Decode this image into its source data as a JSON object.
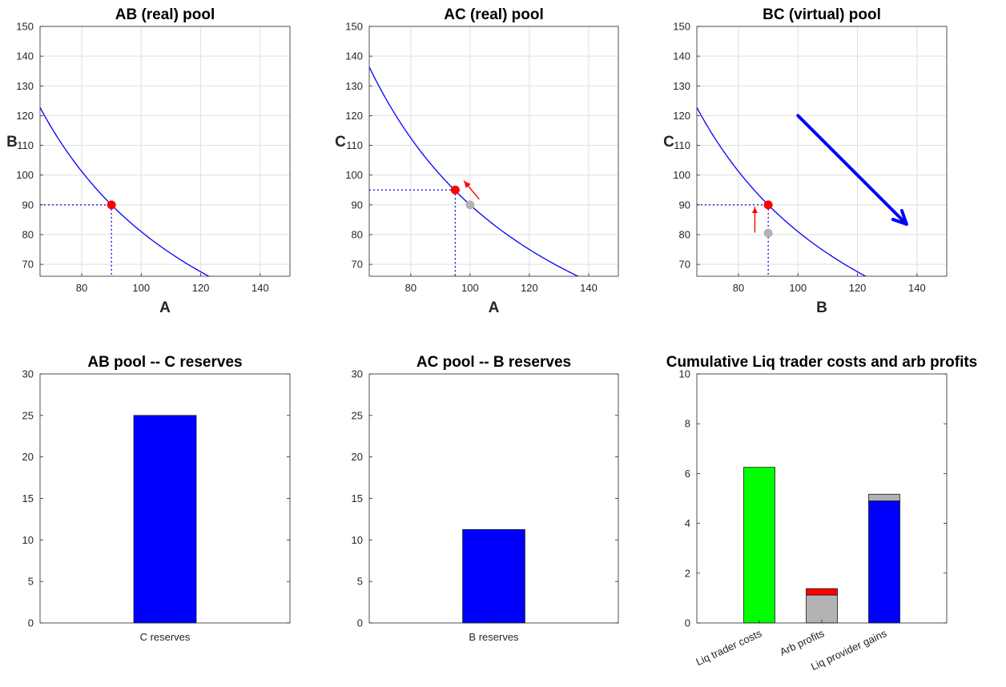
{
  "charts": [
    {
      "type": "line",
      "title": "AB (real) pool",
      "xlabel": "A",
      "ylabel": "B",
      "xlim": [
        66,
        150
      ],
      "ylim": [
        66,
        150
      ],
      "xticks": [
        80,
        100,
        120,
        140
      ],
      "yticks": [
        70,
        80,
        90,
        100,
        110,
        120,
        130,
        140,
        150
      ],
      "grid": true,
      "curve_k": 8100,
      "point": {
        "x": 90,
        "y": 90,
        "color": "#ff0000"
      },
      "ghost_point": null,
      "drop_lines": true,
      "arrows": []
    },
    {
      "type": "line",
      "title": "AC (real) pool",
      "xlabel": "A",
      "ylabel": "C",
      "xlim": [
        66,
        150
      ],
      "ylim": [
        66,
        150
      ],
      "xticks": [
        80,
        100,
        120,
        140
      ],
      "yticks": [
        70,
        80,
        90,
        100,
        110,
        120,
        130,
        140,
        150
      ],
      "grid": true,
      "curve_k": 9000,
      "point": {
        "x": 95,
        "y": 95,
        "color": "#ff0000"
      },
      "ghost_point": {
        "x": 100,
        "y": 90,
        "color": "#b3b3b3"
      },
      "drop_lines": true,
      "arrows": [
        {
          "x1": 103,
          "y1": 92,
          "x2": 98,
          "y2": 98,
          "color": "#ff0000",
          "width": 1.4,
          "head": 9
        }
      ]
    },
    {
      "type": "line",
      "title": "BC (virtual) pool",
      "xlabel": "B",
      "ylabel": "C",
      "xlim": [
        66,
        150
      ],
      "ylim": [
        66,
        150
      ],
      "xticks": [
        80,
        100,
        120,
        140
      ],
      "yticks": [
        70,
        80,
        90,
        100,
        110,
        120,
        130,
        140,
        150
      ],
      "grid": true,
      "curve_k": 8100,
      "point": {
        "x": 90,
        "y": 90,
        "color": "#ff0000"
      },
      "ghost_point": {
        "x": 90,
        "y": 80.5,
        "color": "#b3b3b3"
      },
      "drop_lines": true,
      "arrows": [
        {
          "x1": 85.5,
          "y1": 80.8,
          "x2": 85.5,
          "y2": 89.2,
          "color": "#ff0000",
          "width": 1.4,
          "head": 8
        },
        {
          "x1": 100,
          "y1": 120,
          "x2": 136.5,
          "y2": 83.5,
          "color": "#0000ff",
          "width": 4,
          "head": 18
        }
      ]
    }
  ],
  "chart_data": [
    {
      "type": "bar",
      "title": "AB pool -- C reserves",
      "categories": [
        "C reserves"
      ],
      "values": [
        25
      ],
      "colors": [
        "#0000ff"
      ],
      "ylim": [
        0,
        30
      ],
      "yticks": [
        0,
        5,
        10,
        15,
        20,
        25,
        30
      ],
      "grid": false,
      "xlabel": "",
      "ylabel": ""
    },
    {
      "type": "bar",
      "title": "AC pool -- B reserves",
      "categories": [
        "B reserves"
      ],
      "values": [
        11.25
      ],
      "colors": [
        "#0000ff"
      ],
      "ylim": [
        0,
        30
      ],
      "yticks": [
        0,
        5,
        10,
        15,
        20,
        25,
        30
      ],
      "grid": false,
      "xlabel": "",
      "ylabel": ""
    },
    {
      "type": "bar",
      "stacked": true,
      "title": "Cumulative Liq trader costs and arb profits",
      "categories": [
        "Liq trader costs",
        "Arb profits",
        "Liq provider gains"
      ],
      "series": [
        {
          "values": [
            6.25,
            1.12,
            4.9
          ],
          "colors": [
            "#00ff00",
            "#b3b3b3",
            "#0000ff"
          ]
        },
        {
          "values": [
            0,
            0.26,
            0.27
          ],
          "colors": [
            "#00ff00",
            "#ff0000",
            "#b3b3b3"
          ]
        }
      ],
      "ylim": [
        0,
        10
      ],
      "yticks": [
        0,
        2,
        4,
        6,
        8,
        10
      ],
      "grid": false,
      "xlabel": "",
      "ylabel": ""
    }
  ]
}
